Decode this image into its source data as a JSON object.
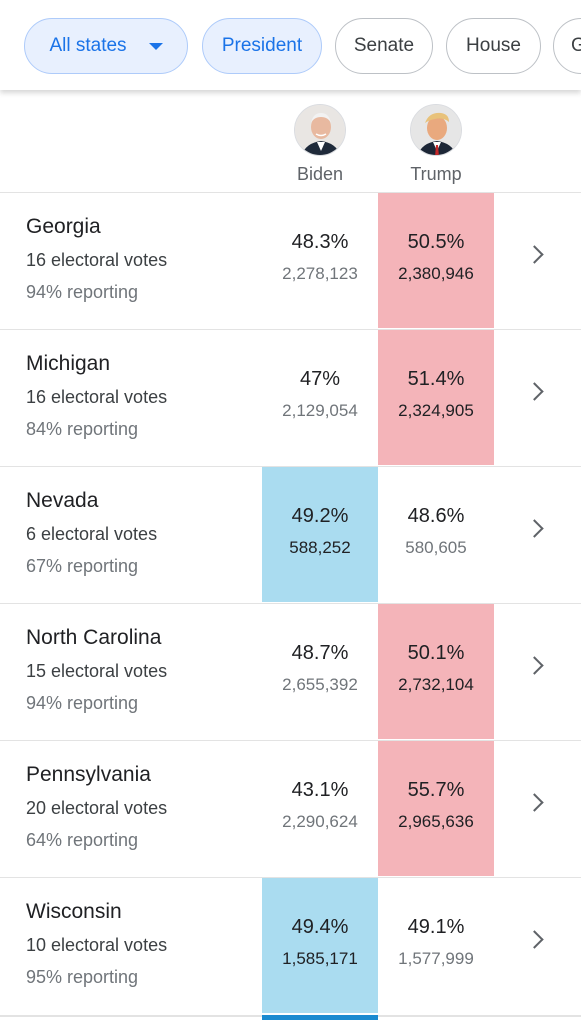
{
  "chips": [
    {
      "label": "All states",
      "active": true,
      "dropdown": true
    },
    {
      "label": "President",
      "active": true
    },
    {
      "label": "Senate",
      "active": false
    },
    {
      "label": "House",
      "active": false
    },
    {
      "label": "G",
      "active": false
    }
  ],
  "candidates": [
    {
      "name": "Biden",
      "avatar_icon": "biden-portrait"
    },
    {
      "name": "Trump",
      "avatar_icon": "trump-portrait"
    }
  ],
  "colors": {
    "red_win": "#f4b4b9",
    "blue_win": "#aadcf0",
    "chip_active_bg": "#e8f0fe",
    "chip_active_text": "#1a73e8"
  },
  "rows": [
    {
      "state": "Georgia",
      "ev": "16 electoral votes",
      "reporting": "94% reporting",
      "biden": {
        "pct": "48.3%",
        "votes": "2,278,123"
      },
      "trump": {
        "pct": "50.5%",
        "votes": "2,380,946"
      },
      "winner": "trump"
    },
    {
      "state": "Michigan",
      "ev": "16 electoral votes",
      "reporting": "84% reporting",
      "biden": {
        "pct": "47%",
        "votes": "2,129,054"
      },
      "trump": {
        "pct": "51.4%",
        "votes": "2,324,905"
      },
      "winner": "trump"
    },
    {
      "state": "Nevada",
      "ev": "6 electoral votes",
      "reporting": "67% reporting",
      "biden": {
        "pct": "49.2%",
        "votes": "588,252"
      },
      "trump": {
        "pct": "48.6%",
        "votes": "580,605"
      },
      "winner": "biden"
    },
    {
      "state": "North Carolina",
      "ev": "15 electoral votes",
      "reporting": "94% reporting",
      "biden": {
        "pct": "48.7%",
        "votes": "2,655,392"
      },
      "trump": {
        "pct": "50.1%",
        "votes": "2,732,104"
      },
      "winner": "trump"
    },
    {
      "state": "Pennsylvania",
      "ev": "20 electoral votes",
      "reporting": "64% reporting",
      "biden": {
        "pct": "43.1%",
        "votes": "2,290,624"
      },
      "trump": {
        "pct": "55.7%",
        "votes": "2,965,636"
      },
      "winner": "trump"
    },
    {
      "state": "Wisconsin",
      "ev": "10 electoral votes",
      "reporting": "95% reporting",
      "biden": {
        "pct": "49.4%",
        "votes": "1,585,171"
      },
      "trump": {
        "pct": "49.1%",
        "votes": "1,577,999"
      },
      "winner": "biden"
    }
  ]
}
